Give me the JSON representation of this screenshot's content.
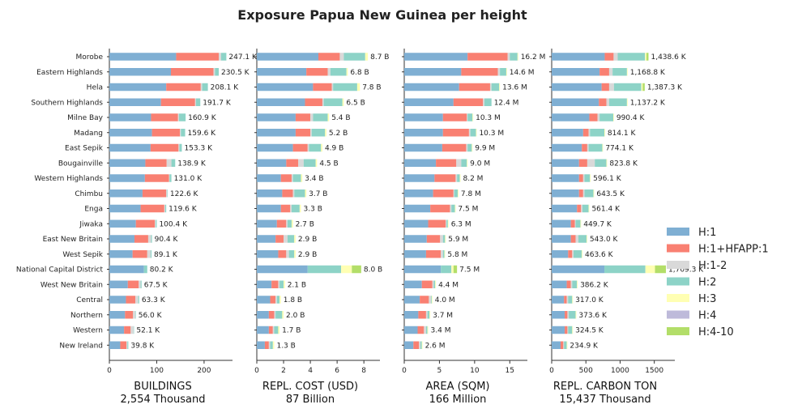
{
  "chart_data": {
    "type": "bar",
    "title": "Exposure Papua New Guinea per height",
    "categories": [
      "Morobe",
      "Eastern Highlands",
      "Hela",
      "Southern Highlands",
      "Milne Bay",
      "Madang",
      "East Sepik",
      "Bougainville",
      "Western Highlands",
      "Chimbu",
      "Enga",
      "Jiwaka",
      "East New Britain",
      "West Sepik",
      "National Capital District",
      "West New Britain",
      "Central",
      "Northern",
      "Western",
      "New Ireland"
    ],
    "legend": {
      "placement": "right",
      "items": [
        {
          "name": "H:1",
          "color": "#7fafd3"
        },
        {
          "name": "H:1+HFAPP:1",
          "color": "#f98072"
        },
        {
          "name": "H:1-2",
          "color": "#d9d9d9"
        },
        {
          "name": "H:2",
          "color": "#8dd3c7"
        },
        {
          "name": "H:3",
          "color": "#ffffb3"
        },
        {
          "name": "H:4",
          "color": "#bebada"
        },
        {
          "name": "H:4-10",
          "color": "#b3de69"
        }
      ]
    },
    "panels": [
      {
        "xlabel": "BUILDINGS",
        "total": "2,554 Thousand",
        "xlim": [
          0,
          260
        ],
        "ticks": [
          0,
          100,
          200
        ],
        "tick_labels": [
          "0",
          "100",
          "200"
        ],
        "series_values": [
          [
            141,
            130,
            120,
            109,
            88,
            90,
            87,
            76,
            75,
            70,
            66,
            56,
            53,
            49,
            73,
            39,
            35,
            33,
            31,
            23
          ],
          [
            90,
            90,
            73,
            72,
            57,
            59,
            59,
            45,
            51,
            50,
            50,
            40,
            29,
            31,
            0,
            23,
            20,
            17,
            14,
            13
          ],
          [
            5,
            3,
            3,
            2,
            2,
            2,
            2,
            10,
            1,
            2,
            2,
            2,
            6,
            7,
            0,
            4,
            6,
            5,
            6,
            2
          ],
          [
            11,
            8,
            12,
            9,
            14,
            9,
            5,
            8,
            4,
            1,
            2,
            2,
            2,
            2,
            7,
            2,
            2,
            1,
            1,
            2
          ],
          [
            0,
            0,
            0,
            0,
            0,
            0,
            0,
            0,
            0,
            0,
            0,
            0,
            0,
            0,
            0,
            0,
            0,
            0,
            0,
            0
          ],
          [
            0,
            0,
            0,
            0,
            0,
            0,
            0,
            0,
            0,
            0,
            0,
            0,
            0,
            0,
            0,
            0,
            0,
            0,
            0,
            0
          ],
          [
            0,
            0,
            0,
            0,
            0,
            0,
            0,
            0,
            0,
            0,
            0,
            0,
            0,
            0,
            0,
            0,
            0,
            0,
            0,
            0
          ]
        ],
        "labels": [
          "247.1 K",
          "230.5 K",
          "208.1 K",
          "191.7 K",
          "160.9 K",
          "159.6 K",
          "153.3 K",
          "138.9 K",
          "131.0 K",
          "122.6 K",
          "119.6 K",
          "100.4 K",
          "90.4 K",
          "89.1 K",
          "80.2 K",
          "67.5 K",
          "63.3 K",
          "56.0 K",
          "52.1 K",
          "39.8 K"
        ]
      },
      {
        "xlabel": "REPL. COST (USD)",
        "total": "87 Billion",
        "xlim": [
          0,
          9.2
        ],
        "ticks": [
          0,
          2,
          4,
          6,
          8
        ],
        "tick_labels": [
          "0",
          "2",
          "4",
          "6",
          "8"
        ],
        "series_values": [
          [
            4.6,
            3.7,
            4.2,
            3.6,
            2.9,
            2.9,
            2.7,
            2.2,
            1.8,
            1.9,
            1.8,
            1.5,
            1.4,
            1.6,
            3.8,
            1.1,
            1.0,
            0.9,
            0.9,
            0.6
          ],
          [
            1.6,
            1.6,
            1.4,
            1.3,
            1.1,
            1.1,
            1.1,
            0.9,
            0.8,
            0.8,
            0.7,
            0.7,
            0.6,
            0.6,
            0.0,
            0.5,
            0.4,
            0.4,
            0.3,
            0.3
          ],
          [
            0.3,
            0.2,
            0.1,
            0.1,
            0.2,
            0.1,
            0.1,
            0.4,
            0.1,
            0.1,
            0.1,
            0.1,
            0.3,
            0.2,
            0.0,
            0.1,
            0.1,
            0.1,
            0.1,
            0.1
          ],
          [
            1.6,
            1.2,
            1.8,
            1.4,
            1.1,
            1.0,
            0.9,
            0.9,
            0.6,
            0.8,
            0.6,
            0.3,
            0.5,
            0.4,
            2.5,
            0.3,
            0.2,
            0.5,
            0.3,
            0.2
          ],
          [
            0.2,
            0.1,
            0.2,
            0.1,
            0.1,
            0.1,
            0.1,
            0.1,
            0.1,
            0.1,
            0.1,
            0.1,
            0.1,
            0.1,
            0.8,
            0.1,
            0.1,
            0.1,
            0.1,
            0.1
          ],
          [
            0.0,
            0.0,
            0.0,
            0.0,
            0.0,
            0.0,
            0.0,
            0.0,
            0.0,
            0.0,
            0.0,
            0.0,
            0.0,
            0.0,
            0.0,
            0.0,
            0.0,
            0.0,
            0.0,
            0.0
          ],
          [
            0.0,
            0.0,
            0.0,
            0.0,
            0.0,
            0.0,
            0.0,
            0.0,
            0.0,
            0.0,
            0.0,
            0.0,
            0.0,
            0.0,
            0.7,
            0.0,
            0.0,
            0.0,
            0.0,
            0.0
          ]
        ],
        "labels": [
          "8.7 B",
          "6.8 B",
          "7.8 B",
          "6.5 B",
          "5.4 B",
          "5.2 B",
          "4.9 B",
          "4.5 B",
          "3.4 B",
          "3.7 B",
          "3.3 B",
          "2.7 B",
          "2.9 B",
          "2.9 B",
          "8.0 B",
          "2.1 B",
          "1.8 B",
          "2.0 B",
          "1.7 B",
          "1.3 B"
        ]
      },
      {
        "xlabel": "AREA (SQM)",
        "total": "166 Million",
        "xlim": [
          0,
          17.5
        ],
        "ticks": [
          0,
          5,
          10,
          15
        ],
        "tick_labels": [
          "0",
          "5",
          "10",
          "15"
        ],
        "series_values": [
          [
            9.0,
            8.1,
            7.8,
            7.0,
            5.5,
            5.5,
            5.4,
            4.5,
            4.3,
            4.1,
            3.7,
            3.4,
            3.2,
            3.1,
            5.2,
            2.5,
            2.2,
            2.0,
            1.9,
            1.3
          ],
          [
            5.7,
            5.2,
            4.4,
            4.2,
            3.4,
            3.7,
            3.4,
            2.9,
            3.0,
            2.9,
            2.8,
            2.5,
            1.9,
            2.1,
            0.0,
            1.5,
            1.3,
            1.1,
            0.9,
            0.8
          ],
          [
            0.3,
            0.3,
            0.2,
            0.2,
            0.1,
            0.2,
            0.2,
            0.7,
            0.2,
            0.1,
            0.2,
            0.1,
            0.4,
            0.3,
            0.0,
            0.2,
            0.3,
            0.2,
            0.3,
            0.2
          ],
          [
            1.1,
            0.9,
            1.1,
            1.0,
            0.7,
            0.8,
            0.6,
            0.8,
            0.4,
            0.5,
            0.5,
            0.2,
            0.3,
            0.2,
            1.5,
            0.2,
            0.1,
            0.3,
            0.2,
            0.2
          ],
          [
            0.1,
            0.1,
            0.1,
            0.0,
            0.1,
            0.1,
            0.1,
            0.1,
            0.1,
            0.1,
            0.1,
            0.1,
            0.1,
            0.1,
            0.3,
            0.1,
            0.1,
            0.1,
            0.1,
            0.1
          ],
          [
            0.0,
            0.0,
            0.0,
            0.0,
            0.0,
            0.0,
            0.0,
            0.0,
            0.0,
            0.0,
            0.0,
            0.0,
            0.0,
            0.0,
            0.0,
            0.0,
            0.0,
            0.0,
            0.0,
            0.0
          ],
          [
            0.0,
            0.0,
            0.0,
            0.0,
            0.0,
            0.0,
            0.0,
            0.0,
            0.0,
            0.0,
            0.0,
            0.0,
            0.0,
            0.0,
            0.5,
            0.0,
            0.0,
            0.0,
            0.0,
            0.0
          ]
        ],
        "labels": [
          "16.2 M",
          "14.6 M",
          "13.6 M",
          "12.4 M",
          "10.3 M",
          "10.3 M",
          "9.9 M",
          "9.0 M",
          "8.2 M",
          "7.8 M",
          "7.5 M",
          "6.3 M",
          "5.9 M",
          "5.8 M",
          "7.5 M",
          "4.4 M",
          "4.0 M",
          "3.7 M",
          "3.4 M",
          "2.6 M"
        ]
      },
      {
        "xlabel": "REPL. CARBON TON",
        "total": "15,437 Thousand",
        "xlim": [
          0,
          1800
        ],
        "ticks": [
          0,
          500,
          1000,
          1500
        ],
        "tick_labels": [
          "0",
          "500",
          "1000",
          "1500"
        ],
        "series_values": [
          [
            775,
            700,
            730,
            690,
            550,
            460,
            440,
            400,
            400,
            400,
            370,
            280,
            280,
            240,
            770,
            220,
            180,
            190,
            190,
            130
          ],
          [
            130,
            140,
            110,
            110,
            120,
            80,
            80,
            120,
            60,
            60,
            60,
            60,
            70,
            60,
            0,
            60,
            40,
            40,
            40,
            40
          ],
          [
            60,
            50,
            70,
            40,
            30,
            20,
            20,
            110,
            20,
            20,
            20,
            10,
            40,
            20,
            0,
            20,
            20,
            20,
            10,
            10
          ],
          [
            400,
            210,
            400,
            260,
            200,
            210,
            200,
            170,
            80,
            130,
            90,
            70,
            120,
            120,
            600,
            70,
            60,
            100,
            60,
            40
          ],
          [
            20,
            10,
            20,
            10,
            10,
            10,
            10,
            10,
            10,
            10,
            10,
            10,
            10,
            10,
            140,
            10,
            10,
            10,
            10,
            10
          ],
          [
            0,
            0,
            0,
            0,
            0,
            0,
            0,
            0,
            0,
            0,
            0,
            0,
            0,
            0,
            0,
            0,
            0,
            0,
            0,
            0
          ],
          [
            30,
            0,
            30,
            0,
            0,
            0,
            0,
            0,
            0,
            0,
            0,
            0,
            0,
            0,
            160,
            0,
            0,
            0,
            0,
            0
          ]
        ],
        "labels": [
          "1,438.6 K",
          "1,168.8 K",
          "1,387.3 K",
          "1,137.2 K",
          "990.4 K",
          "814.1 K",
          "774.1 K",
          "823.8 K",
          "596.1 K",
          "643.5 K",
          "561.4 K",
          "449.7 K",
          "543.0 K",
          "463.6 K",
          "1,709.3 K",
          "386.2 K",
          "317.0 K",
          "373.6 K",
          "324.5 K",
          "234.9 K"
        ]
      }
    ]
  }
}
